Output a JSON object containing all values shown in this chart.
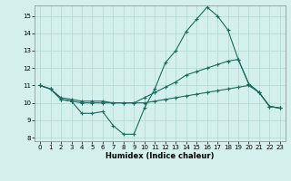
{
  "xlabel": "Humidex (Indice chaleur)",
  "bg_color": "#d4f0ec",
  "line_color": "#1a6b5e",
  "grid_color": "#b0d8d2",
  "xlim": [
    -0.5,
    23.5
  ],
  "ylim": [
    7.8,
    15.6
  ],
  "yticks": [
    8,
    9,
    10,
    11,
    12,
    13,
    14,
    15
  ],
  "xticks": [
    0,
    1,
    2,
    3,
    4,
    5,
    6,
    7,
    8,
    9,
    10,
    11,
    12,
    13,
    14,
    15,
    16,
    17,
    18,
    19,
    20,
    21,
    22,
    23
  ],
  "series": [
    {
      "x": [
        0,
        1,
        2,
        3,
        4,
        5,
        6,
        7,
        8,
        9,
        10,
        11,
        12,
        13,
        14,
        15,
        16,
        17,
        18,
        19,
        20,
        21,
        22,
        23
      ],
      "y": [
        11.0,
        10.8,
        10.2,
        10.1,
        9.4,
        9.4,
        9.5,
        8.7,
        8.2,
        8.2,
        9.7,
        10.8,
        12.3,
        13.0,
        14.1,
        14.8,
        15.5,
        15.0,
        14.2,
        12.5,
        11.1,
        10.6,
        9.8,
        9.7
      ]
    },
    {
      "x": [
        0,
        1,
        2,
        3,
        4,
        5,
        6,
        7,
        8,
        9,
        10,
        11,
        12,
        13,
        14,
        15,
        16,
        17,
        18,
        19,
        20,
        21,
        22,
        23
      ],
      "y": [
        11.0,
        10.8,
        10.3,
        10.2,
        10.1,
        10.1,
        10.1,
        10.0,
        10.0,
        10.0,
        10.3,
        10.6,
        10.9,
        11.2,
        11.6,
        11.8,
        12.0,
        12.2,
        12.4,
        12.5,
        11.1,
        10.6,
        9.8,
        9.7
      ]
    },
    {
      "x": [
        0,
        1,
        2,
        3,
        4,
        5,
        6,
        7,
        8,
        9,
        10,
        11,
        12,
        13,
        14,
        15,
        16,
        17,
        18,
        19,
        20,
        21,
        22,
        23
      ],
      "y": [
        11.0,
        10.8,
        10.2,
        10.1,
        10.0,
        10.0,
        10.0,
        10.0,
        10.0,
        10.0,
        10.0,
        10.1,
        10.2,
        10.3,
        10.4,
        10.5,
        10.6,
        10.7,
        10.8,
        10.9,
        11.0,
        10.6,
        9.8,
        9.7
      ]
    }
  ]
}
